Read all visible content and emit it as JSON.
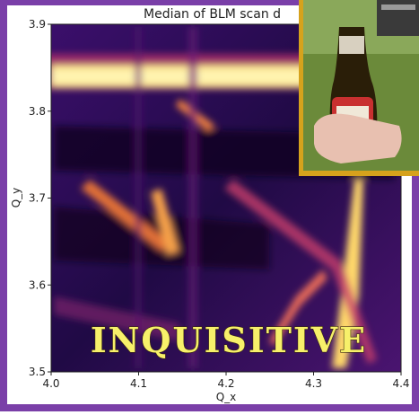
{
  "chart_data": {
    "type": "heatmap",
    "title": "Median of BLM scan d",
    "x_label": "Q_x",
    "y_label": "Q_y",
    "xlim": [
      4.0,
      4.4
    ],
    "ylim": [
      3.5,
      3.9
    ],
    "xticks": [
      {
        "value": 4.0,
        "label": "4.0"
      },
      4.1,
      4.2,
      4.3,
      4.4
    ],
    "yticks": [
      3.5,
      3.6,
      3.7,
      3.8,
      3.9
    ]
  },
  "caption": "INQUISITIVE"
}
